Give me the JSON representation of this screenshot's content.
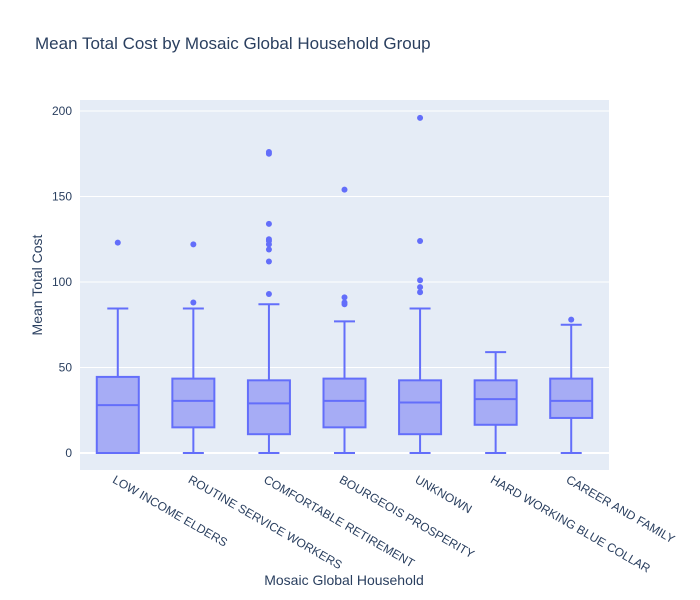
{
  "chart_data": {
    "type": "box",
    "title": "Mean Total Cost by Mosaic Global Household Group",
    "xlabel": "Mosaic Global Household",
    "ylabel": "Mean Total Cost",
    "ylim": [
      -10,
      207
    ],
    "yticks": [
      0,
      50,
      100,
      150,
      200
    ],
    "grid": true,
    "legend": "none",
    "colors": {
      "box_line": "#636efa",
      "box_fill": "#a6acf5",
      "plot_bg": "#e5ecf6",
      "grid": "#ffffff",
      "text": "#2a3f5f"
    },
    "categories": [
      "LOW INCOME ELDERS",
      "ROUTINE SERVICE WORKERS",
      "COMFORTABLE RETIREMENT",
      "BOURGEOIS PROSPERITY",
      "UNKNOWN",
      "HARD WORKING BLUE COLLAR",
      "CAREER AND FAMILY"
    ],
    "boxes": [
      {
        "min": 0,
        "q1": 0,
        "median": 28,
        "q3": 44.5,
        "max": 84.5,
        "outliers": [
          123
        ]
      },
      {
        "min": 0,
        "q1": 15,
        "median": 30.5,
        "q3": 43.5,
        "max": 84.5,
        "outliers": [
          88,
          122
        ]
      },
      {
        "min": 0,
        "q1": 11,
        "median": 29,
        "q3": 42.5,
        "max": 87,
        "outliers": [
          93,
          112,
          119,
          122,
          124,
          125,
          134,
          175,
          176
        ]
      },
      {
        "min": 0,
        "q1": 15,
        "median": 30.5,
        "q3": 43.5,
        "max": 77,
        "outliers": [
          87,
          88,
          91,
          154
        ]
      },
      {
        "min": 0,
        "q1": 11,
        "median": 29.5,
        "q3": 42.5,
        "max": 84.5,
        "outliers": [
          94,
          97,
          101,
          124,
          196
        ]
      },
      {
        "min": 0,
        "q1": 16.5,
        "median": 31.5,
        "q3": 42.5,
        "max": 59,
        "outliers": []
      },
      {
        "min": 0,
        "q1": 20.5,
        "median": 30.5,
        "q3": 43.5,
        "max": 75,
        "outliers": [
          78
        ]
      }
    ]
  }
}
